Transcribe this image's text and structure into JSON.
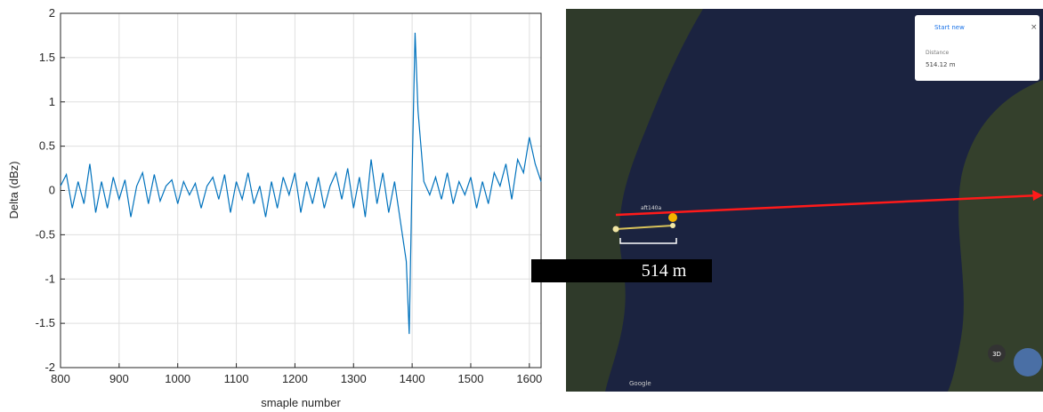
{
  "chart_data": {
    "type": "line",
    "xlabel": "smaple number",
    "ylabel": "Delta (dBz)",
    "x": [
      800,
      810,
      820,
      830,
      840,
      850,
      860,
      870,
      880,
      890,
      900,
      910,
      920,
      930,
      940,
      950,
      960,
      970,
      980,
      990,
      1000,
      1010,
      1020,
      1030,
      1040,
      1050,
      1060,
      1070,
      1080,
      1090,
      1100,
      1110,
      1120,
      1130,
      1140,
      1150,
      1160,
      1170,
      1180,
      1190,
      1200,
      1210,
      1220,
      1230,
      1240,
      1250,
      1260,
      1270,
      1280,
      1290,
      1300,
      1310,
      1320,
      1330,
      1340,
      1350,
      1360,
      1370,
      1380,
      1390,
      1395,
      1400,
      1405,
      1410,
      1420,
      1430,
      1440,
      1450,
      1460,
      1470,
      1480,
      1490,
      1500,
      1510,
      1520,
      1530,
      1540,
      1550,
      1560,
      1570,
      1580,
      1590,
      1600,
      1610,
      1620
    ],
    "series": [
      {
        "color": "#0072bd",
        "values": [
          0.05,
          0.18,
          -0.2,
          0.1,
          -0.15,
          0.3,
          -0.25,
          0.1,
          -0.2,
          0.15,
          -0.1,
          0.12,
          -0.3,
          0.05,
          0.2,
          -0.15,
          0.18,
          -0.12,
          0.05,
          0.12,
          -0.15,
          0.1,
          -0.05,
          0.08,
          -0.2,
          0.05,
          0.15,
          -0.1,
          0.18,
          -0.25,
          0.1,
          -0.1,
          0.2,
          -0.15,
          0.05,
          -0.3,
          0.1,
          -0.2,
          0.15,
          -0.05,
          0.2,
          -0.25,
          0.1,
          -0.15,
          0.15,
          -0.2,
          0.05,
          0.2,
          -0.1,
          0.25,
          -0.2,
          0.15,
          -0.3,
          0.35,
          -0.15,
          0.2,
          -0.25,
          0.1,
          -0.35,
          -0.8,
          -1.62,
          0.2,
          1.78,
          0.9,
          0.1,
          -0.05,
          0.15,
          -0.1,
          0.2,
          -0.15,
          0.1,
          -0.05,
          0.15,
          -0.2,
          0.1,
          -0.15,
          0.2,
          0.05,
          0.3,
          -0.1,
          0.35,
          0.2,
          0.6,
          0.3,
          0.1
        ]
      }
    ],
    "xlim": [
      800,
      1620
    ],
    "xticks": [
      800,
      900,
      1000,
      1100,
      1200,
      1300,
      1400,
      1500,
      1600
    ],
    "ylim": [
      -2,
      2
    ],
    "yticks": [
      -2,
      -1.5,
      -1,
      -0.5,
      0,
      0.5,
      1,
      1.5,
      2
    ],
    "grid": true
  },
  "map": {
    "panel": {
      "button": "Start new",
      "label": "Distance",
      "value": "514.12 m"
    },
    "place_label": "aft140a",
    "annotation": "514 m",
    "control": "3D",
    "attribution": "Google"
  }
}
